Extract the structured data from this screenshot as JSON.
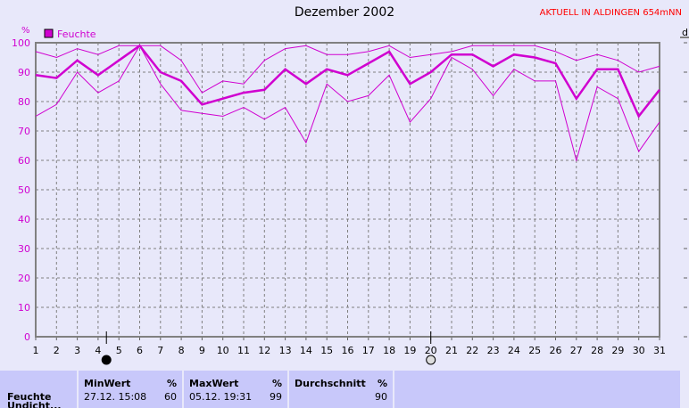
{
  "title": "Dezember 2002",
  "station": "AKTUELL IN ALDINGEN 654mNN",
  "right_axis_letter": "d",
  "chart_data": {
    "type": "line",
    "title": "Dezember 2002",
    "ylabel": "%",
    "ylim": [
      0,
      100
    ],
    "yticks": [
      0,
      10,
      20,
      30,
      40,
      50,
      60,
      70,
      80,
      90,
      100
    ],
    "x": [
      1,
      2,
      3,
      4,
      5,
      6,
      7,
      8,
      9,
      10,
      11,
      12,
      13,
      14,
      15,
      16,
      17,
      18,
      19,
      20,
      21,
      22,
      23,
      24,
      25,
      26,
      27,
      28,
      29,
      30,
      31
    ],
    "grid": true,
    "legend": "top-left",
    "legend_label": "Feuchte",
    "color": "#d000d0",
    "series": [
      {
        "values": [
          97,
          95,
          98,
          96,
          99,
          99,
          99,
          94,
          83,
          87,
          86,
          94,
          98,
          99,
          96,
          96,
          97,
          99,
          95,
          96,
          97,
          99,
          99,
          99,
          99,
          97,
          94,
          96,
          94,
          90,
          92
        ]
      },
      {
        "name": "Feuchte",
        "values": [
          89,
          88,
          94,
          89,
          94,
          99,
          90,
          87,
          79,
          81,
          83,
          84,
          91,
          86,
          91,
          89,
          93,
          97,
          86,
          90,
          96,
          96,
          92,
          96,
          95,
          93,
          81,
          91,
          91,
          75,
          84
        ]
      },
      {
        "values": [
          75,
          79,
          90,
          83,
          87,
          99,
          86,
          77,
          76,
          75,
          78,
          74,
          78,
          66,
          86,
          80,
          82,
          89,
          73,
          81,
          95,
          91,
          82,
          91,
          87,
          87,
          60,
          85,
          81,
          63,
          73
        ]
      }
    ],
    "moon_phases": [
      {
        "day": 4.4,
        "phase": "new-moon"
      },
      {
        "day": 20,
        "phase": "full-moon"
      }
    ]
  },
  "stats": {
    "row_label": "Feuchte",
    "row_label2": "Undicht...",
    "min": {
      "label": "MinWert",
      "unit": "%",
      "when": "27.12.  15:08",
      "value": "60"
    },
    "max": {
      "label": "MaxWert",
      "unit": "%",
      "when": "05.12.  19:31",
      "value": "99"
    },
    "avg": {
      "label": "Durchschnitt",
      "unit": "%",
      "value": "90"
    }
  }
}
